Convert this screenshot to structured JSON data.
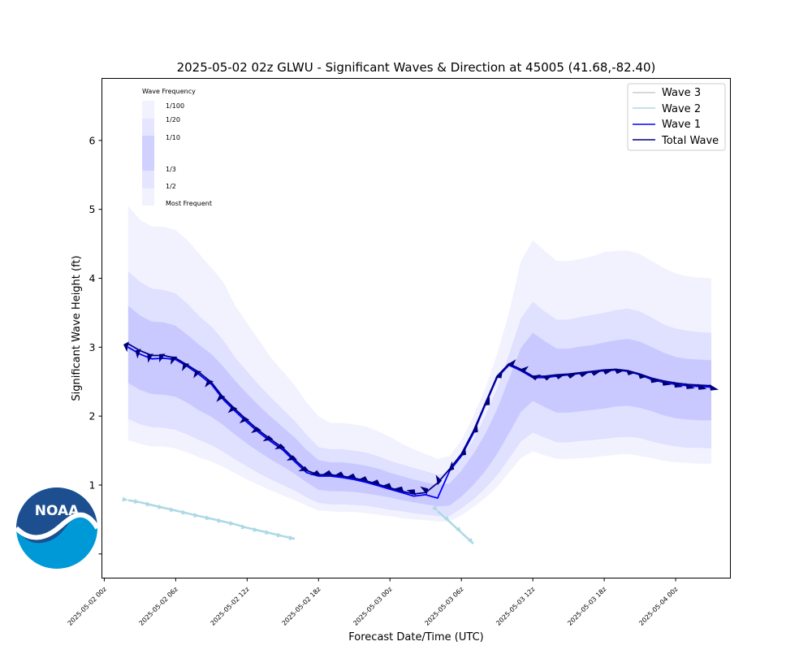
{
  "chart_data": {
    "type": "line",
    "title": "2025-05-02 02z GLWU - Significant Waves & Direction at 45005 (41.68,-82.40)",
    "xlabel": "Forecast Date/Time (UTC)",
    "ylabel": "Significant Wave Height (ft)",
    "x_tick_labels": [
      "2025-05-02 00z",
      "2025-05-02 06z",
      "2025-05-02 12z",
      "2025-05-02 18z",
      "2025-05-03 00z",
      "2025-05-03 06z",
      "2025-05-03 12z",
      "2025-05-03 18z",
      "2025-05-04 00z"
    ],
    "x_ticks_hours": [
      0,
      6,
      12,
      18,
      24,
      30,
      36,
      42,
      48
    ],
    "y_ticks": [
      1,
      2,
      3,
      4,
      5,
      6
    ],
    "xlim_hours": [
      -0.2,
      52.6
    ],
    "ylim": [
      -0.35,
      6.9
    ],
    "x_hours": [
      2,
      3,
      4,
      5,
      6,
      7,
      8,
      9,
      10,
      11,
      12,
      13,
      14,
      15,
      16,
      17,
      18,
      19,
      20,
      21,
      22,
      23,
      24,
      25,
      26,
      27,
      28,
      29,
      30,
      31,
      32,
      33,
      34,
      35,
      36,
      37,
      38,
      39,
      40,
      41,
      42,
      43,
      44,
      45,
      46,
      47,
      48,
      49,
      50,
      51
    ],
    "series": [
      {
        "name": "Total Wave",
        "color": "#00007f",
        "values": [
          3.05,
          2.95,
          2.88,
          2.88,
          2.84,
          2.74,
          2.63,
          2.49,
          2.27,
          2.1,
          1.94,
          1.79,
          1.66,
          1.54,
          1.37,
          1.21,
          1.15,
          1.15,
          1.13,
          1.1,
          1.06,
          1.01,
          0.96,
          0.91,
          0.87,
          0.89,
          1.03,
          1.23,
          1.45,
          1.78,
          2.18,
          2.58,
          2.76,
          2.68,
          2.58,
          2.58,
          2.6,
          2.61,
          2.63,
          2.65,
          2.67,
          2.68,
          2.66,
          2.61,
          2.55,
          2.51,
          2.48,
          2.46,
          2.45,
          2.44
        ]
      },
      {
        "name": "Wave 1",
        "color": "#0000ff",
        "values": [
          3.0,
          2.9,
          2.83,
          2.84,
          2.82,
          2.72,
          2.6,
          2.46,
          2.24,
          2.07,
          1.91,
          1.76,
          1.63,
          1.51,
          1.34,
          1.18,
          1.13,
          1.13,
          1.11,
          1.08,
          1.04,
          0.99,
          0.94,
          0.89,
          0.84,
          0.86,
          0.81,
          1.2,
          1.42,
          1.75,
          2.16,
          2.56,
          2.74,
          2.66,
          2.56,
          2.56,
          2.58,
          2.6,
          2.62,
          2.64,
          2.66,
          2.67,
          2.65,
          2.6,
          2.53,
          2.49,
          2.46,
          2.44,
          2.43,
          2.42
        ]
      },
      {
        "name": "Wave 2",
        "color": "#add8e6",
        "values": []
      },
      {
        "name": "Wave 3",
        "color": "#cccccc",
        "values": []
      }
    ],
    "total_dir_deg": [
      190,
      200,
      210,
      215,
      220,
      225,
      230,
      235,
      240,
      245,
      250,
      255,
      260,
      262,
      265,
      268,
      270,
      272,
      275,
      278,
      280,
      282,
      285,
      290,
      300,
      320,
      350,
      20,
      30,
      30,
      35,
      45,
      60,
      70,
      80,
      85,
      90,
      90,
      90,
      92,
      95,
      100,
      105,
      110,
      115,
      118,
      120,
      120,
      120,
      120
    ],
    "wave2_arrows": {
      "color": "#add8e6",
      "group1_x_hours": [
        2,
        3,
        4,
        5,
        6,
        7,
        8,
        9,
        10,
        11,
        12,
        13,
        14,
        15,
        16
      ],
      "group1_y": [
        0.78,
        0.75,
        0.71,
        0.67,
        0.63,
        0.59,
        0.55,
        0.51,
        0.47,
        0.43,
        0.38,
        0.34,
        0.3,
        0.26,
        0.22
      ],
      "group2_x_hours": [
        28,
        29,
        30,
        31
      ],
      "group2_y": [
        0.62,
        0.47,
        0.31,
        0.15
      ]
    },
    "frequency_bands": {
      "labels": [
        "1/100",
        "1/20",
        "1/10",
        "1/3",
        "1/2",
        "Most Frequent"
      ],
      "title": "Wave Frequency",
      "total_upper_1_100": [
        5.05,
        4.85,
        4.75,
        4.75,
        4.7,
        4.55,
        4.35,
        4.15,
        3.95,
        3.6,
        3.35,
        3.1,
        2.85,
        2.65,
        2.45,
        2.2,
        2.0,
        1.9,
        1.9,
        1.88,
        1.85,
        1.78,
        1.7,
        1.6,
        1.52,
        1.45,
        1.38,
        1.42,
        1.65,
        2.0,
        2.4,
        2.9,
        3.5,
        4.25,
        4.55,
        4.4,
        4.25,
        4.25,
        4.28,
        4.32,
        4.38,
        4.4,
        4.4,
        4.35,
        4.25,
        4.15,
        4.07,
        4.03,
        4.01,
        4.0
      ],
      "total_upper_1_20": [
        4.1,
        3.95,
        3.85,
        3.83,
        3.78,
        3.63,
        3.45,
        3.3,
        3.1,
        2.85,
        2.65,
        2.45,
        2.27,
        2.1,
        1.93,
        1.73,
        1.55,
        1.52,
        1.52,
        1.5,
        1.47,
        1.42,
        1.35,
        1.3,
        1.25,
        1.2,
        1.15,
        1.18,
        1.38,
        1.66,
        2.0,
        2.4,
        2.9,
        3.42,
        3.66,
        3.52,
        3.4,
        3.4,
        3.44,
        3.47,
        3.5,
        3.54,
        3.56,
        3.52,
        3.43,
        3.33,
        3.27,
        3.24,
        3.22,
        3.21
      ],
      "total_upper_1_10": [
        3.6,
        3.46,
        3.37,
        3.36,
        3.31,
        3.18,
        3.03,
        2.9,
        2.72,
        2.51,
        2.33,
        2.15,
        1.99,
        1.84,
        1.69,
        1.51,
        1.36,
        1.33,
        1.33,
        1.31,
        1.28,
        1.24,
        1.18,
        1.13,
        1.08,
        1.04,
        1.0,
        1.02,
        1.21,
        1.45,
        1.74,
        2.1,
        2.54,
        2.99,
        3.21,
        3.09,
        2.98,
        2.98,
        3.01,
        3.03,
        3.07,
        3.1,
        3.12,
        3.08,
        3.0,
        2.92,
        2.86,
        2.83,
        2.82,
        2.81
      ],
      "total_lower_1_3": [
        2.48,
        2.38,
        2.32,
        2.31,
        2.28,
        2.19,
        2.08,
        1.99,
        1.87,
        1.73,
        1.6,
        1.48,
        1.37,
        1.27,
        1.16,
        1.04,
        0.93,
        0.91,
        0.91,
        0.9,
        0.88,
        0.85,
        0.82,
        0.78,
        0.75,
        0.72,
        0.69,
        0.7,
        0.83,
        1.0,
        1.2,
        1.45,
        1.75,
        2.06,
        2.22,
        2.13,
        2.05,
        2.05,
        2.07,
        2.09,
        2.11,
        2.14,
        2.15,
        2.12,
        2.07,
        2.01,
        1.97,
        1.95,
        1.94,
        1.94
      ],
      "total_lower_1_2": [
        1.96,
        1.88,
        1.84,
        1.83,
        1.8,
        1.73,
        1.65,
        1.58,
        1.48,
        1.37,
        1.27,
        1.17,
        1.08,
        1.0,
        0.92,
        0.82,
        0.74,
        0.72,
        0.72,
        0.71,
        0.7,
        0.67,
        0.64,
        0.62,
        0.59,
        0.57,
        0.55,
        0.55,
        0.66,
        0.79,
        0.95,
        1.14,
        1.38,
        1.63,
        1.76,
        1.69,
        1.62,
        1.62,
        1.64,
        1.65,
        1.67,
        1.69,
        1.7,
        1.68,
        1.63,
        1.59,
        1.56,
        1.54,
        1.54,
        1.53
      ],
      "total_lower_most_frequent": [
        1.65,
        1.6,
        1.56,
        1.56,
        1.53,
        1.47,
        1.4,
        1.34,
        1.26,
        1.17,
        1.08,
        1.0,
        0.92,
        0.85,
        0.78,
        0.7,
        0.63,
        0.62,
        0.61,
        0.61,
        0.59,
        0.57,
        0.55,
        0.52,
        0.5,
        0.49,
        0.47,
        0.47,
        0.56,
        0.68,
        0.81,
        0.97,
        1.18,
        1.39,
        1.49,
        1.43,
        1.38,
        1.38,
        1.39,
        1.4,
        1.42,
        1.44,
        1.45,
        1.42,
        1.39,
        1.35,
        1.33,
        1.32,
        1.31,
        1.31
      ]
    },
    "legend": {
      "placement": "upper-right",
      "entries": [
        "Wave 3",
        "Wave 2",
        "Wave 1",
        "Total Wave"
      ]
    },
    "grid": false
  },
  "logo": {
    "text": "NOAA",
    "colors": {
      "dark_blue": "#1d4e8f",
      "light_blue": "#0099d8"
    }
  }
}
